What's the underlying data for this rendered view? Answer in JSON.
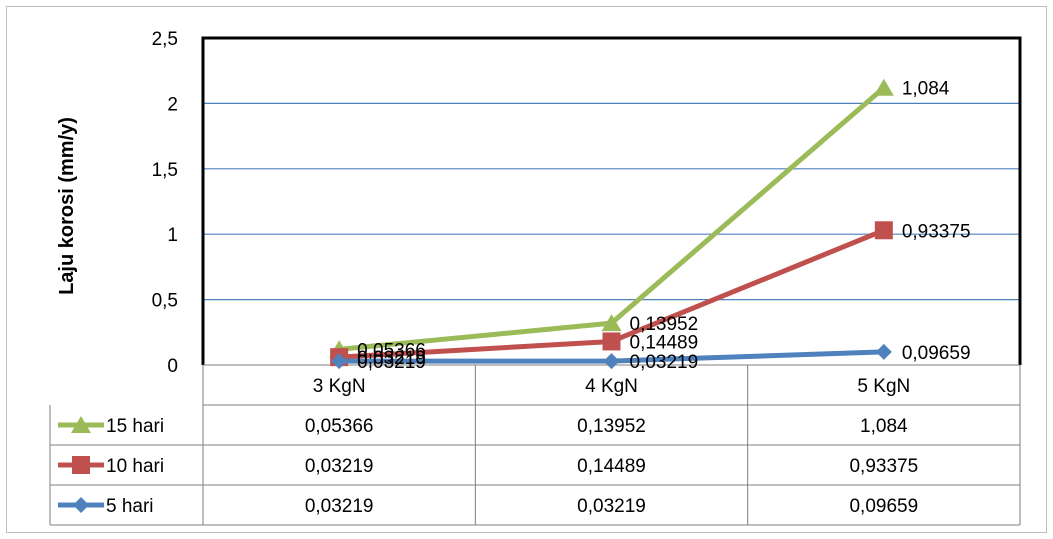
{
  "chart_data": {
    "type": "line",
    "ylabel": "Laju korosi (mm/y)",
    "categories": [
      "3 KgN",
      "4 KgN",
      "5 KgN"
    ],
    "ylim": [
      0,
      2.5
    ],
    "yticks": [
      0,
      0.5,
      1,
      1.5,
      2,
      2.5
    ],
    "ytick_labels": [
      "0",
      "0,5",
      "1",
      "1,5",
      "2",
      "2,5"
    ],
    "grid": true,
    "legend": "data-table",
    "series": [
      {
        "name": "15 hari",
        "color": "#9BBB59",
        "marker": "triangle",
        "values": [
          0.12,
          0.32,
          2.12
        ],
        "labels": [
          "0,05366",
          "0,13952",
          "1,084"
        ]
      },
      {
        "name": "10 hari",
        "color": "#C0504D",
        "marker": "square",
        "values": [
          0.06,
          0.18,
          1.03
        ],
        "labels": [
          "0,03219",
          "0,14489",
          "0,93375"
        ]
      },
      {
        "name": "5 hari",
        "color": "#4F81BD",
        "marker": "diamond",
        "values": [
          0.03,
          0.03,
          0.1
        ],
        "labels": [
          "0,03219",
          "0,03219",
          "0,09659"
        ]
      }
    ]
  }
}
